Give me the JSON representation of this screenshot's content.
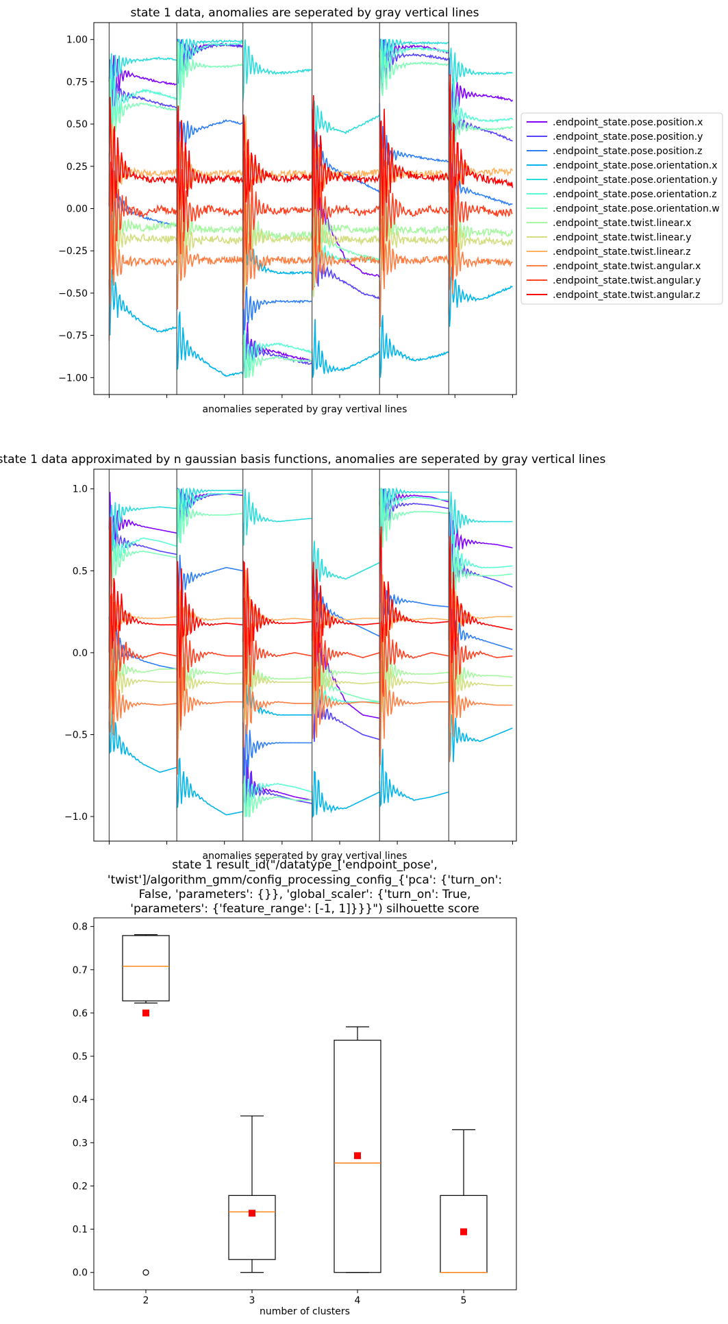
{
  "chart_data": [
    {
      "type": "line",
      "title": "state 1 data, anomalies are seperated by gray vertical lines",
      "xlabel": "anomalies seperated by gray vertival lines",
      "ylabel": "",
      "ylim": [
        -1.1,
        1.1
      ],
      "yticks": [
        -1.0,
        -0.75,
        -0.5,
        -0.25,
        0.0,
        0.25,
        0.5,
        0.75,
        1.0
      ],
      "ytick_labels": [
        "−1.00",
        "−0.75",
        "−0.50",
        "−0.25",
        "0.00",
        "0.25",
        "0.50",
        "0.75",
        "1.00"
      ],
      "xlim": [
        -20,
        530
      ],
      "xticks": [
        0,
        75,
        150,
        225,
        300,
        375,
        450,
        525
      ],
      "separators": [
        0,
        88,
        174,
        264,
        352,
        442
      ],
      "legend_position": "outside-right",
      "grid": false,
      "series": [
        {
          "name": ".endpoint_state.pose.position.x",
          "color": "#7f00ff",
          "segments": [
            [
              0.75,
              0.8,
              0.77,
              0.75,
              0.73
            ],
            [
              0.9,
              0.95,
              0.97,
              0.97,
              0.96
            ],
            [
              -0.8,
              -0.83,
              -0.85,
              -0.88,
              -0.9
            ],
            [
              0.1,
              -0.1,
              -0.3,
              -0.38,
              -0.4
            ],
            [
              0.9,
              0.95,
              0.96,
              0.95,
              0.92
            ],
            [
              0.7,
              0.68,
              0.67,
              0.66,
              0.64
            ]
          ]
        },
        {
          "name": ".endpoint_state.pose.position.y",
          "color": "#5641fd",
          "segments": [
            [
              0.7,
              0.67,
              0.65,
              0.62,
              0.6
            ],
            [
              0.85,
              0.93,
              0.96,
              0.97,
              0.96
            ],
            [
              -0.82,
              -0.85,
              -0.87,
              -0.9,
              -0.92
            ],
            [
              -0.3,
              -0.38,
              -0.44,
              -0.5,
              -0.53
            ],
            [
              0.85,
              0.9,
              0.91,
              0.9,
              0.88
            ],
            [
              0.55,
              0.5,
              0.47,
              0.44,
              0.4
            ]
          ]
        },
        {
          "name": ".endpoint_state.pose.position.z",
          "color": "#2c7ef7",
          "segments": [
            [
              0.1,
              0.0,
              -0.05,
              -0.08,
              -0.1
            ],
            [
              0.42,
              0.46,
              0.49,
              0.52,
              0.5
            ],
            [
              -0.62,
              -0.56,
              -0.55,
              -0.55,
              -0.55
            ],
            [
              0.35,
              0.25,
              0.2,
              0.15,
              0.1
            ],
            [
              0.3,
              0.32,
              0.31,
              0.29,
              0.28
            ],
            [
              0.15,
              0.11,
              0.08,
              0.05,
              0.02
            ]
          ]
        },
        {
          "name": ".endpoint_state.pose.orientation.x",
          "color": "#00b5eb",
          "segments": [
            [
              -0.47,
              -0.6,
              -0.68,
              -0.73,
              -0.7
            ],
            [
              -0.78,
              -0.85,
              -0.93,
              -0.99,
              -0.97
            ],
            [
              -0.2,
              -0.35,
              -0.38,
              -0.38,
              -0.38
            ],
            [
              -0.85,
              -0.95,
              -0.95,
              -0.9,
              -0.85
            ],
            [
              -0.8,
              -0.85,
              -0.9,
              -0.88,
              -0.85
            ],
            [
              -0.47,
              -0.52,
              -0.54,
              -0.5,
              -0.46
            ]
          ]
        },
        {
          "name": ".endpoint_state.pose.orientation.y",
          "color": "#2adddd",
          "segments": [
            [
              0.78,
              0.87,
              0.88,
              0.89,
              0.88
            ],
            [
              0.95,
              0.98,
              0.99,
              0.99,
              0.99
            ],
            [
              0.9,
              0.82,
              0.8,
              0.81,
              0.82
            ],
            [
              0.55,
              0.48,
              0.45,
              0.5,
              0.55
            ],
            [
              0.95,
              0.98,
              0.98,
              0.98,
              0.98
            ],
            [
              0.82,
              0.81,
              0.8,
              0.8,
              0.8
            ]
          ]
        },
        {
          "name": ".endpoint_state.pose.orientation.z",
          "color": "#56fdd6",
          "segments": [
            [
              0.6,
              0.65,
              0.7,
              0.68,
              0.65
            ],
            [
              0.8,
              0.93,
              0.97,
              0.97,
              0.98
            ],
            [
              -0.9,
              -0.82,
              -0.8,
              -0.82,
              -0.85
            ],
            [
              -0.2,
              -0.28,
              -0.3,
              -0.3,
              -0.3
            ],
            [
              0.88,
              0.93,
              0.95,
              0.94,
              0.93
            ],
            [
              0.6,
              0.55,
              0.52,
              0.52,
              0.53
            ]
          ]
        },
        {
          "name": ".endpoint_state.pose.orientation.w",
          "color": "#7efeb9",
          "segments": [
            [
              0.5,
              0.6,
              0.62,
              0.6,
              0.58
            ],
            [
              0.8,
              0.85,
              0.84,
              0.84,
              0.85
            ],
            [
              -0.95,
              -0.9,
              -0.88,
              -0.9,
              -0.9
            ],
            [
              -0.1,
              -0.2,
              -0.25,
              -0.28,
              -0.3
            ],
            [
              0.78,
              0.84,
              0.86,
              0.86,
              0.85
            ],
            [
              0.5,
              0.48,
              0.47,
              0.47,
              0.48
            ]
          ]
        },
        {
          "name": ".endpoint_state.twist.linear.x",
          "color": "#a4f89f",
          "segments": [
            [
              -0.05,
              -0.1,
              -0.12,
              -0.1,
              -0.1
            ],
            [
              -0.1,
              -0.12,
              -0.12,
              -0.13,
              -0.12
            ],
            [
              -0.1,
              -0.15,
              -0.16,
              -0.16,
              -0.15
            ],
            [
              -0.1,
              -0.12,
              -0.12,
              -0.13,
              -0.12
            ],
            [
              -0.08,
              -0.12,
              -0.13,
              -0.13,
              -0.12
            ],
            [
              -0.1,
              -0.13,
              -0.14,
              -0.14,
              -0.15
            ]
          ]
        },
        {
          "name": ".endpoint_state.twist.linear.y",
          "color": "#d4dd80",
          "segments": [
            [
              -0.15,
              -0.18,
              -0.17,
              -0.18,
              -0.18
            ],
            [
              -0.18,
              -0.19,
              -0.18,
              -0.19,
              -0.19
            ],
            [
              -0.15,
              -0.17,
              -0.18,
              -0.18,
              -0.18
            ],
            [
              -0.17,
              -0.18,
              -0.18,
              -0.19,
              -0.18
            ],
            [
              -0.16,
              -0.18,
              -0.18,
              -0.19,
              -0.18
            ],
            [
              -0.17,
              -0.19,
              -0.19,
              -0.2,
              -0.2
            ]
          ]
        },
        {
          "name": ".endpoint_state.twist.linear.z",
          "color": "#ffb360",
          "segments": [
            [
              0.2,
              0.22,
              0.21,
              0.21,
              0.22
            ],
            [
              0.2,
              0.21,
              0.2,
              0.21,
              0.21
            ],
            [
              0.2,
              0.2,
              0.2,
              0.21,
              0.2
            ],
            [
              0.2,
              0.21,
              0.2,
              0.21,
              0.21
            ],
            [
              0.2,
              0.21,
              0.2,
              0.21,
              0.2
            ],
            [
              0.21,
              0.22,
              0.21,
              0.22,
              0.22
            ]
          ]
        },
        {
          "name": ".endpoint_state.twist.angular.x",
          "color": "#ff7e41",
          "segments": [
            [
              -0.3,
              -0.32,
              -0.31,
              -0.32,
              -0.31
            ],
            [
              -0.3,
              -0.3,
              -0.31,
              -0.3,
              -0.3
            ],
            [
              -0.31,
              -0.32,
              -0.3,
              -0.31,
              -0.31
            ],
            [
              -0.3,
              -0.31,
              -0.31,
              -0.3,
              -0.31
            ],
            [
              -0.29,
              -0.3,
              -0.31,
              -0.3,
              -0.3
            ],
            [
              -0.3,
              -0.31,
              -0.31,
              -0.32,
              -0.32
            ]
          ]
        },
        {
          "name": ".endpoint_state.twist.angular.y",
          "color": "#ff4121",
          "segments": [
            [
              -0.02,
              0.0,
              -0.03,
              0.0,
              -0.02
            ],
            [
              0.0,
              -0.03,
              0.0,
              -0.02,
              -0.02
            ],
            [
              -0.03,
              0.0,
              -0.02,
              0.0,
              -0.02
            ],
            [
              0.0,
              -0.02,
              0.0,
              -0.03,
              0.0
            ],
            [
              -0.02,
              0.0,
              -0.03,
              0.0,
              -0.02
            ],
            [
              0.0,
              -0.02,
              0.0,
              -0.03,
              -0.02
            ]
          ]
        },
        {
          "name": ".endpoint_state.twist.angular.z",
          "color": "#ff0000",
          "segments": [
            [
              0.3,
              0.22,
              0.18,
              0.17,
              0.17
            ],
            [
              0.22,
              0.19,
              0.17,
              0.18,
              0.17
            ],
            [
              0.25,
              0.2,
              0.18,
              0.18,
              0.19
            ],
            [
              0.25,
              0.2,
              0.18,
              0.17,
              0.18
            ],
            [
              0.28,
              0.22,
              0.19,
              0.18,
              0.19
            ],
            [
              0.28,
              0.22,
              0.18,
              0.16,
              0.14
            ]
          ]
        }
      ]
    },
    {
      "type": "line",
      "title": "state 1 data approximated by n gaussian basis functions, anomalies are seperated by gray vertical lines",
      "xlabel": "anomalies seperated by gray vertival lines",
      "ylabel": "",
      "ylim": [
        -1.15,
        1.12
      ],
      "yticks": [
        -1.0,
        -0.5,
        0.0,
        0.5,
        1.0
      ],
      "ytick_labels": [
        "−1.0",
        "−0.5",
        "0.0",
        "0.5",
        "1.0"
      ],
      "xlim": [
        -20,
        530
      ],
      "xticks": [
        0,
        75,
        150,
        225,
        300,
        375,
        450,
        525
      ],
      "separators": [
        0,
        88,
        174,
        264,
        352,
        442
      ],
      "grid": false,
      "series_same_as_first": true
    },
    {
      "type": "box",
      "title": "state 1 result_id(\"/datatype_['endpoint_pose', 'twist']/algorithm_gmm/config_processing_config_{'pca': {'turn_on': False, 'parameters': {}}, 'global_scaler': {'turn_on': True, 'parameters': {'feature_range': [-1, 1]}}}\") silhouette score",
      "title_lines": [
        "state 1 result_id(\"/datatype_['endpoint_pose',",
        "'twist']/algorithm_gmm/config_processing_config_{'pca': {'turn_on':",
        "False, 'parameters': {}}, 'global_scaler': {'turn_on': True,",
        "'parameters': {'feature_range': [-1, 1]}}}\") silhouette score"
      ],
      "xlabel": "number of clusters",
      "ylabel": "",
      "ylim": [
        -0.04,
        0.82
      ],
      "yticks": [
        0.0,
        0.1,
        0.2,
        0.3,
        0.4,
        0.5,
        0.6,
        0.7,
        0.8
      ],
      "ytick_labels": [
        "0.0",
        "0.1",
        "0.2",
        "0.3",
        "0.4",
        "0.5",
        "0.6",
        "0.7",
        "0.8"
      ],
      "categories": [
        "2",
        "3",
        "4",
        "5"
      ],
      "boxes": [
        {
          "whisker_low": 0.623,
          "q1": 0.628,
          "median": 0.708,
          "q3": 0.779,
          "whisker_high": 0.781,
          "mean": 0.6,
          "outliers": [
            0.0
          ]
        },
        {
          "whisker_low": 0.0,
          "q1": 0.03,
          "median": 0.14,
          "q3": 0.178,
          "whisker_high": 0.362,
          "mean": 0.137,
          "outliers": []
        },
        {
          "whisker_low": 0.0,
          "q1": 0.0,
          "median": 0.253,
          "q3": 0.537,
          "whisker_high": 0.568,
          "mean": 0.27,
          "outliers": []
        },
        {
          "whisker_low": 0.0,
          "q1": 0.0,
          "median": 0.0,
          "q3": 0.178,
          "whisker_high": 0.33,
          "mean": 0.094,
          "outliers": []
        }
      ],
      "median_color": "#ff7f0e",
      "mean_color": "#ff0000"
    }
  ]
}
